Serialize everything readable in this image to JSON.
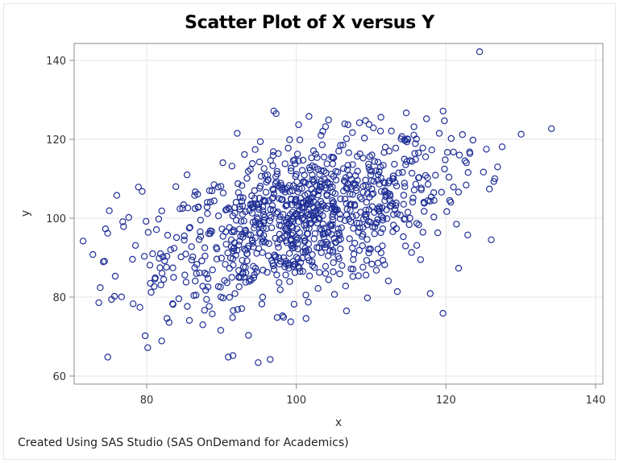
{
  "page": {
    "title": "Scatter Plot of X versus Y",
    "footer": "Created Using SAS Studio (SAS OnDemand for Academics)"
  },
  "chart_data": {
    "type": "scatter",
    "title": "Scatter Plot of X versus Y",
    "xlabel": "x",
    "ylabel": "y",
    "xlim": [
      70.5,
      141
    ],
    "ylim": [
      58,
      144
    ],
    "xticks": [
      80,
      100,
      120,
      140
    ],
    "yticks": [
      60,
      80,
      100,
      120,
      140
    ],
    "grid": true,
    "legend": null,
    "marker": {
      "shape": "open-circle",
      "color": "#1f2f96",
      "size": 8
    },
    "footnote": "Created Using SAS Studio (SAS OnDemand for Academics)",
    "n_points_approx": 1000,
    "series": [
      {
        "name": "y",
        "points": [
          [
            71.5,
            94.2
          ],
          [
            72.8,
            90.8
          ],
          [
            73.8,
            82.4
          ],
          [
            73.6,
            78.6
          ],
          [
            74.5,
            97.3
          ],
          [
            74.8,
            64.8
          ],
          [
            75.0,
            101.9
          ],
          [
            75.3,
            79.4
          ],
          [
            75.7,
            80.2
          ],
          [
            75.8,
            85.3
          ],
          [
            76.0,
            105.8
          ],
          [
            76.8,
            99.1
          ],
          [
            77.6,
            100.2
          ],
          [
            78.1,
            89.6
          ],
          [
            78.5,
            93.1
          ],
          [
            78.9,
            107.9
          ],
          [
            79.1,
            77.4
          ],
          [
            79.4,
            106.8
          ],
          [
            79.8,
            70.2
          ],
          [
            80.2,
            96.4
          ],
          [
            80.5,
            83.5
          ],
          [
            80.8,
            91.0
          ],
          [
            81.1,
            84.6
          ],
          [
            81.3,
            97.1
          ],
          [
            81.6,
            99.8
          ],
          [
            81.9,
            83.1
          ],
          [
            82.0,
            68.9
          ],
          [
            82.4,
            89.2
          ],
          [
            82.8,
            95.7
          ],
          [
            83.0,
            73.6
          ],
          [
            83.2,
            92.0
          ],
          [
            83.5,
            87.4
          ],
          [
            83.9,
            108.0
          ],
          [
            84.0,
            95.1
          ],
          [
            84.3,
            79.6
          ],
          [
            84.6,
            90.2
          ],
          [
            84.8,
            102.5
          ],
          [
            85.1,
            85.6
          ],
          [
            85.4,
            111.0
          ],
          [
            85.7,
            97.5
          ],
          [
            86.0,
            92.8
          ],
          [
            86.3,
            80.4
          ],
          [
            86.5,
            106.7
          ],
          [
            86.7,
            88.3
          ],
          [
            87.0,
            94.6
          ],
          [
            87.2,
            99.5
          ],
          [
            87.5,
            73.0
          ],
          [
            87.8,
            90.4
          ],
          [
            88.1,
            104.0
          ],
          [
            88.2,
            82.6
          ],
          [
            88.5,
            96.8
          ],
          [
            88.8,
            86.9
          ],
          [
            89.0,
            108.5
          ],
          [
            89.3,
            92.6
          ],
          [
            89.6,
            100.6
          ],
          [
            89.9,
            71.6
          ],
          [
            90.2,
            95.4
          ],
          [
            90.4,
            84.2
          ],
          [
            90.7,
            102.2
          ],
          [
            90.9,
            64.8
          ],
          [
            91.2,
            89.9
          ],
          [
            91.4,
            113.2
          ],
          [
            91.6,
            97.0
          ],
          [
            91.8,
            80.9
          ],
          [
            92.1,
            121.5
          ],
          [
            92.3,
            93.2
          ],
          [
            92.5,
            105.3
          ],
          [
            92.7,
            77.1
          ],
          [
            93.0,
            99.3
          ],
          [
            93.2,
            87.6
          ],
          [
            93.4,
            110.1
          ],
          [
            93.6,
            70.3
          ],
          [
            93.9,
            95.8
          ],
          [
            94.1,
            102.9
          ],
          [
            94.3,
            84.9
          ],
          [
            94.5,
            117.4
          ],
          [
            94.7,
            91.1
          ],
          [
            94.9,
            63.4
          ],
          [
            95.1,
            107.6
          ],
          [
            95.3,
            98.0
          ],
          [
            95.5,
            80.0
          ],
          [
            95.7,
            112.6
          ],
          [
            95.9,
            93.9
          ],
          [
            96.1,
            86.3
          ],
          [
            96.3,
            104.4
          ],
          [
            96.5,
            64.2
          ],
          [
            96.7,
            97.6
          ],
          [
            96.9,
            115.9
          ],
          [
            97.1,
            90.7
          ],
          [
            97.3,
            126.5
          ],
          [
            97.5,
            101.6
          ],
          [
            97.7,
            83.7
          ],
          [
            97.9,
            108.9
          ],
          [
            98.1,
            95.0
          ],
          [
            98.3,
            74.9
          ],
          [
            98.5,
            113.8
          ],
          [
            98.7,
            99.0
          ],
          [
            98.9,
            88.6
          ],
          [
            99.1,
            119.9
          ],
          [
            99.3,
            104.8
          ],
          [
            99.5,
            92.4
          ],
          [
            99.7,
            78.2
          ],
          [
            99.9,
            110.6
          ],
          [
            100.1,
            97.3
          ],
          [
            100.3,
            123.7
          ],
          [
            100.5,
            86.5
          ],
          [
            100.7,
            102.7
          ],
          [
            100.9,
            114.7
          ],
          [
            101.1,
            94.1
          ],
          [
            101.3,
            74.6
          ],
          [
            101.5,
            106.2
          ],
          [
            101.7,
            125.8
          ],
          [
            101.9,
            99.7
          ],
          [
            102.1,
            89.0
          ],
          [
            102.3,
            117.1
          ],
          [
            102.5,
            96.1
          ],
          [
            102.7,
            108.3
          ],
          [
            102.9,
            82.2
          ],
          [
            103.1,
            101.1
          ],
          [
            103.3,
            121.0
          ],
          [
            103.5,
            93.5
          ],
          [
            103.7,
            112.0
          ],
          [
            103.9,
            87.8
          ],
          [
            104.1,
            105.7
          ],
          [
            104.3,
            124.9
          ],
          [
            104.5,
            98.4
          ],
          [
            104.7,
            115.5
          ],
          [
            104.9,
            91.8
          ],
          [
            105.1,
            80.7
          ],
          [
            105.3,
            109.7
          ],
          [
            105.5,
            102.1
          ],
          [
            105.7,
            96.3
          ],
          [
            105.9,
            118.5
          ],
          [
            106.1,
            88.0
          ],
          [
            106.3,
            106.9
          ],
          [
            106.5,
            99.4
          ],
          [
            106.7,
            76.5
          ],
          [
            106.9,
            113.4
          ],
          [
            107.1,
            94.8
          ],
          [
            107.3,
            103.6
          ],
          [
            107.5,
            121.7
          ],
          [
            107.7,
            90.9
          ],
          [
            107.9,
            110.8
          ],
          [
            108.1,
            98.8
          ],
          [
            108.3,
            85.4
          ],
          [
            108.5,
            116.3
          ],
          [
            108.7,
            104.9
          ],
          [
            108.9,
            95.9
          ],
          [
            109.1,
            120.3
          ],
          [
            109.3,
            100.3
          ],
          [
            109.5,
            79.8
          ],
          [
            109.7,
            112.9
          ],
          [
            109.9,
            92.2
          ],
          [
            110.1,
            107.4
          ],
          [
            110.3,
            122.9
          ],
          [
            110.5,
            97.8
          ],
          [
            110.7,
            86.8
          ],
          [
            110.9,
            114.2
          ],
          [
            111.1,
            102.4
          ],
          [
            111.3,
            125.6
          ],
          [
            111.5,
            93.0
          ],
          [
            111.7,
            109.1
          ],
          [
            111.9,
            118.0
          ],
          [
            112.1,
            99.9
          ],
          [
            112.3,
            84.1
          ],
          [
            112.5,
            106.1
          ],
          [
            112.7,
            122.1
          ],
          [
            112.9,
            96.6
          ],
          [
            113.1,
            113.7
          ],
          [
            113.3,
            103.2
          ],
          [
            113.5,
            81.4
          ],
          [
            113.7,
            111.5
          ],
          [
            113.9,
            100.8
          ],
          [
            114.1,
            120.7
          ],
          [
            114.3,
            95.3
          ],
          [
            114.5,
            108.0
          ],
          [
            114.7,
            126.7
          ],
          [
            114.9,
            101.5
          ],
          [
            115.2,
            114.6
          ],
          [
            115.4,
            91.3
          ],
          [
            115.6,
            105.1
          ],
          [
            115.9,
            118.9
          ],
          [
            116.1,
            98.7
          ],
          [
            116.4,
            110.3
          ],
          [
            116.6,
            89.5
          ],
          [
            116.9,
            117.8
          ],
          [
            117.1,
            103.8
          ],
          [
            117.4,
            125.2
          ],
          [
            117.6,
            108.6
          ],
          [
            117.9,
            80.9
          ],
          [
            118.1,
            117.3
          ],
          [
            118.4,
            104.5
          ],
          [
            118.6,
            110.9
          ],
          [
            118.9,
            96.3
          ],
          [
            119.1,
            121.5
          ],
          [
            119.4,
            106.6
          ],
          [
            119.6,
            75.9
          ],
          [
            119.9,
            114.8
          ],
          [
            120.1,
            101.7
          ],
          [
            120.4,
            110.4
          ],
          [
            120.7,
            120.2
          ],
          [
            121.0,
            107.9
          ],
          [
            121.4,
            98.5
          ],
          [
            121.8,
            116.0
          ],
          [
            122.2,
            121.2
          ],
          [
            122.7,
            108.4
          ],
          [
            123.2,
            116.4
          ],
          [
            123.6,
            119.8
          ],
          [
            124.5,
            142.2
          ],
          [
            125.0,
            111.7
          ],
          [
            125.4,
            117.5
          ],
          [
            125.8,
            107.4
          ],
          [
            126.4,
            109.3
          ],
          [
            126.9,
            113.0
          ],
          [
            127.5,
            118.1
          ],
          [
            134.1,
            122.7
          ]
        ]
      }
    ]
  }
}
